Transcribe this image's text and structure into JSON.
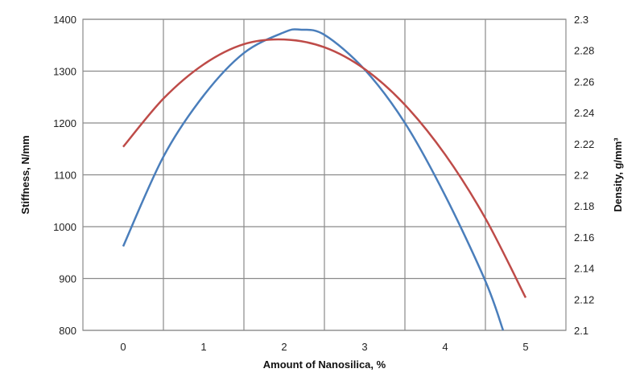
{
  "chart_data": {
    "type": "line",
    "title": "",
    "xlabel": "Amount of Nanosilica, %",
    "ylabel": "Stiffness, N/mm",
    "y2label": "Density, g/mm³",
    "xlim": [
      -0.5,
      5.5
    ],
    "ylim": [
      800,
      1400
    ],
    "y2lim": [
      2.1,
      2.3
    ],
    "x_ticks": [
      "0",
      "1",
      "2",
      "3",
      "4",
      "5"
    ],
    "y_ticks": [
      "800",
      "900",
      "1000",
      "1100",
      "1200",
      "1300",
      "1400"
    ],
    "y2_ticks": [
      "2.1",
      "2.12",
      "2.14",
      "2.16",
      "2.18",
      "2.2",
      "2.22",
      "2.24",
      "2.26",
      "2.28",
      "2.3"
    ],
    "grid": true,
    "legend": "none",
    "series": [
      {
        "axis": "left",
        "color": "#4a7ebb",
        "x": [
          0,
          0.5,
          1,
          1.5,
          2,
          2.2,
          2.5,
          3,
          3.5,
          4,
          4.5,
          4.72
        ],
        "values": [
          962,
          1135,
          1253,
          1335,
          1375,
          1380,
          1370,
          1303,
          1200,
          1060,
          895,
          800
        ]
      },
      {
        "axis": "right",
        "color": "#be4b48",
        "x": [
          0,
          0.5,
          1,
          1.5,
          2,
          2.5,
          3,
          3.5,
          4,
          4.5,
          5
        ],
        "values": [
          2.218,
          2.249,
          2.271,
          2.284,
          2.287,
          2.282,
          2.268,
          2.245,
          2.213,
          2.172,
          2.121
        ]
      }
    ]
  }
}
